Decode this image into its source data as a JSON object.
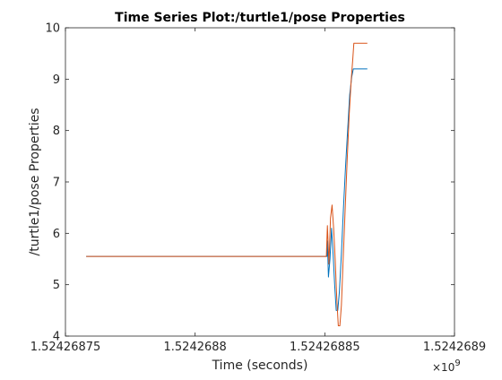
{
  "chart_data": {
    "type": "line",
    "title": "Time Series Plot:/turtle1/pose Properties",
    "xlabel": "Time (seconds)",
    "ylabel": "/turtle1/pose Properties",
    "x_exponent_base": "×10",
    "x_exponent_power": "9",
    "x_multiplier": 1000000000,
    "xlim": [
      1.52426875,
      1.5242689
    ],
    "ylim": [
      4,
      10
    ],
    "xticks": [
      1.52426875,
      1.5242688,
      1.52426885,
      1.5242689
    ],
    "xtick_labels": [
      "1.52426875",
      "1.5242688",
      "1.52426885",
      "1.5242689"
    ],
    "yticks": [
      4,
      5,
      6,
      7,
      8,
      9,
      10
    ],
    "ytick_labels": [
      "4",
      "5",
      "6",
      "7",
      "8",
      "9",
      "10"
    ],
    "grid": false,
    "series": [
      {
        "color": "#0072BD",
        "points": [
          [
            1.524268758,
            5.55
          ],
          [
            1.5242688508,
            5.55
          ],
          [
            1.524268851,
            5.85
          ],
          [
            1.5242688514,
            5.15
          ],
          [
            1.524268852,
            5.5
          ],
          [
            1.5242688526,
            6.1
          ],
          [
            1.5242688532,
            5.6
          ],
          [
            1.5242688538,
            5.0
          ],
          [
            1.5242688544,
            4.5
          ],
          [
            1.524268855,
            4.5
          ],
          [
            1.5242688556,
            4.85
          ],
          [
            1.5242688564,
            5.6
          ],
          [
            1.5242688572,
            6.5
          ],
          [
            1.524268858,
            7.3
          ],
          [
            1.5242688588,
            8.0
          ],
          [
            1.5242688596,
            8.7
          ],
          [
            1.5242688604,
            9.05
          ],
          [
            1.524268861,
            9.2
          ],
          [
            1.5242688618,
            9.2
          ],
          [
            1.5242688664,
            9.2
          ]
        ]
      },
      {
        "color": "#D95319",
        "points": [
          [
            1.524268758,
            5.55
          ],
          [
            1.5242688506,
            5.55
          ],
          [
            1.524268851,
            6.15
          ],
          [
            1.5242688516,
            5.4
          ],
          [
            1.5242688522,
            6.3
          ],
          [
            1.5242688528,
            6.55
          ],
          [
            1.5242688534,
            6.1
          ],
          [
            1.524268854,
            5.5
          ],
          [
            1.5242688546,
            4.75
          ],
          [
            1.5242688552,
            4.2
          ],
          [
            1.5242688558,
            4.2
          ],
          [
            1.5242688564,
            4.6
          ],
          [
            1.524268857,
            5.4
          ],
          [
            1.5242688578,
            6.4
          ],
          [
            1.5242688586,
            7.4
          ],
          [
            1.5242688594,
            8.3
          ],
          [
            1.5242688602,
            9.0
          ],
          [
            1.5242688608,
            9.4
          ],
          [
            1.5242688612,
            9.7
          ],
          [
            1.5242688664,
            9.7
          ]
        ]
      }
    ]
  }
}
